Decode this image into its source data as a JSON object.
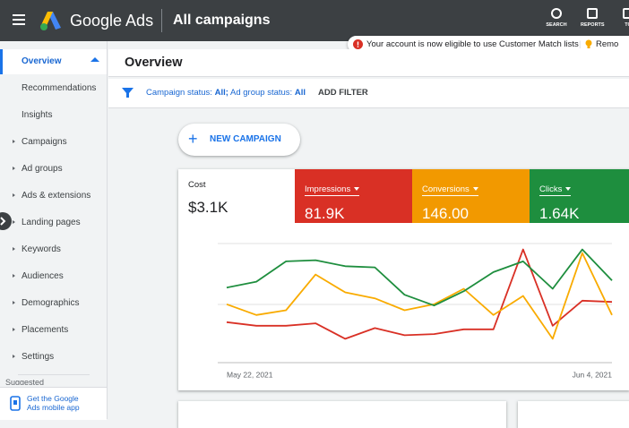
{
  "header": {
    "product": "Google Ads",
    "title": "All campaigns",
    "icons": [
      "SEARCH",
      "REPORTS",
      "TO"
    ]
  },
  "notification": {
    "text": "Your account is now eligible to use Customer Match lists",
    "action": "Remo"
  },
  "sidebar": {
    "items": [
      {
        "label": "Overview",
        "selected": true
      },
      {
        "label": "Recommendations"
      },
      {
        "label": "Insights"
      },
      {
        "label": "Campaigns",
        "expandable": true
      },
      {
        "label": "Ad groups",
        "expandable": true
      },
      {
        "label": "Ads & extensions",
        "expandable": true
      },
      {
        "label": "Landing pages",
        "expandable": true
      },
      {
        "label": "Keywords",
        "expandable": true
      },
      {
        "label": "Audiences",
        "expandable": true
      },
      {
        "label": "Demographics",
        "expandable": true
      },
      {
        "label": "Placements",
        "expandable": true
      },
      {
        "label": "Settings",
        "expandable": true
      }
    ],
    "section": "Suggested",
    "app_promo": "Get the Google Ads mobile app"
  },
  "page_title": "Overview",
  "filter": {
    "campaign_label": "Campaign status:",
    "campaign_value": "All;",
    "adgroup_label": "Ad group status:",
    "adgroup_value": "All",
    "add": "ADD FILTER"
  },
  "new_campaign": "NEW CAMPAIGN",
  "metrics": [
    {
      "label": "Cost",
      "value": "$3.1K",
      "color": "#ffffff"
    },
    {
      "label": "Impressions",
      "value": "81.9K",
      "color": "#d93025"
    },
    {
      "label": "Conversions",
      "value": "146.00",
      "color": "#f29900"
    },
    {
      "label": "Clicks",
      "value": "1.64K",
      "color": "#1e8e3e"
    }
  ],
  "chart_data": {
    "type": "line",
    "categories": [
      "May 22, 2021",
      null,
      null,
      null,
      null,
      null,
      null,
      null,
      null,
      null,
      null,
      null,
      null,
      "Jun 4, 2021"
    ],
    "ylim": [
      0,
      100
    ],
    "series": [
      {
        "color": "#d93025",
        "values": [
          34,
          31,
          31,
          33,
          20,
          29,
          23,
          24,
          28,
          28,
          95,
          31,
          52,
          51
        ]
      },
      {
        "color": "#f9ab00",
        "values": [
          49,
          40,
          44,
          74,
          59,
          54,
          44,
          49,
          62,
          40,
          56,
          20,
          92,
          40
        ]
      },
      {
        "color": "#1e8e3e",
        "values": [
          63,
          68,
          85,
          86,
          81,
          80,
          57,
          48,
          60,
          76,
          85,
          62,
          95,
          69
        ]
      }
    ]
  }
}
